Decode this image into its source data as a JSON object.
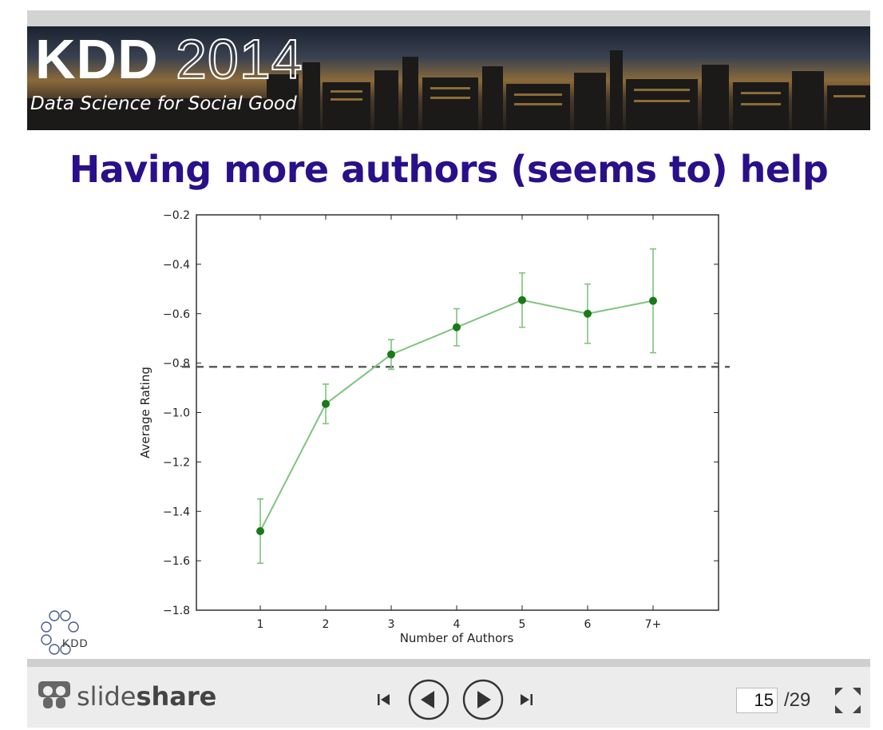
{
  "banner": {
    "brand": "KDD",
    "year": "2014",
    "subtitle": "Data Science for Social Good"
  },
  "slide": {
    "title": "Having more authors (seems to) help",
    "logo_text": "KDD"
  },
  "chart_data": {
    "type": "line",
    "categories": [
      "1",
      "2",
      "3",
      "4",
      "5",
      "6",
      "7+"
    ],
    "series": [
      {
        "values": [
          -1.48,
          -0.965,
          -0.765,
          -0.655,
          -0.545,
          -0.6,
          -0.548
        ],
        "error": [
          0.13,
          0.08,
          0.06,
          0.075,
          0.11,
          0.12,
          0.21
        ],
        "color": "#1a7a1a",
        "line_color": "#7fc47f"
      }
    ],
    "reference_line": -0.815,
    "xlabel": "Number of Authors",
    "ylabel": "Average Rating",
    "ylim": [
      -1.8,
      -0.2
    ],
    "yticks": [
      "-0.2",
      "-0.4",
      "-0.6",
      "-0.8",
      "-1.0",
      "-1.2",
      "-1.4",
      "-1.6",
      "-1.8"
    ],
    "grid": false
  },
  "player": {
    "brand_light": "slide",
    "brand_bold": "share",
    "current_page": "15",
    "total_pages": "/29"
  }
}
